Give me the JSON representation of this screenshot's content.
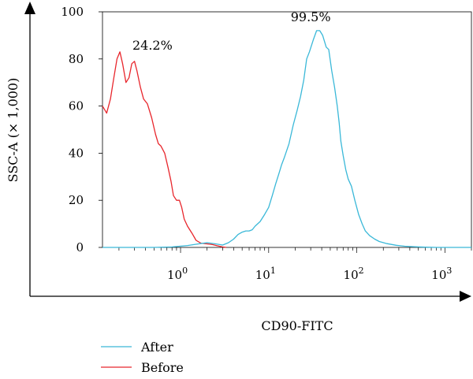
{
  "chart_data": {
    "type": "line",
    "xlabel": "CD90-FITC",
    "ylabel": "SSC-A (× 1,000)",
    "x_scale": "log",
    "xlim": [
      0.13,
      2000
    ],
    "ylim": [
      0,
      100
    ],
    "x_ticks": [
      {
        "value": 1,
        "base": "10",
        "exp": "0"
      },
      {
        "value": 10,
        "base": "10",
        "exp": "1"
      },
      {
        "value": 100,
        "base": "10",
        "exp": "2"
      },
      {
        "value": 1000,
        "base": "10",
        "exp": "3"
      }
    ],
    "y_ticks": [
      {
        "value": 0,
        "label": "0"
      },
      {
        "value": 20,
        "label": "20"
      },
      {
        "value": 40,
        "label": "40"
      },
      {
        "value": 60,
        "label": "60"
      },
      {
        "value": 80,
        "label": "80"
      },
      {
        "value": 100,
        "label": "100"
      }
    ],
    "annotations": [
      {
        "text": "24.2%",
        "x": 0.48,
        "y": 84
      },
      {
        "text": "99.5%",
        "x": 30,
        "y": 96
      }
    ],
    "legend_position": "bottom-left",
    "series": [
      {
        "name": "Before",
        "color": "#e8262c",
        "points": [
          [
            0.13,
            60
          ],
          [
            0.145,
            57
          ],
          [
            0.16,
            63
          ],
          [
            0.175,
            72
          ],
          [
            0.19,
            80
          ],
          [
            0.205,
            83
          ],
          [
            0.22,
            78
          ],
          [
            0.24,
            70
          ],
          [
            0.26,
            72
          ],
          [
            0.28,
            78
          ],
          [
            0.3,
            79
          ],
          [
            0.32,
            75
          ],
          [
            0.35,
            68
          ],
          [
            0.38,
            63
          ],
          [
            0.42,
            61
          ],
          [
            0.47,
            55
          ],
          [
            0.52,
            48
          ],
          [
            0.56,
            44
          ],
          [
            0.6,
            43
          ],
          [
            0.66,
            40
          ],
          [
            0.72,
            34
          ],
          [
            0.78,
            28
          ],
          [
            0.83,
            22
          ],
          [
            0.9,
            20
          ],
          [
            0.97,
            20
          ],
          [
            1.03,
            17
          ],
          [
            1.1,
            12
          ],
          [
            1.2,
            9
          ],
          [
            1.35,
            6
          ],
          [
            1.5,
            3
          ],
          [
            1.7,
            1.8
          ],
          [
            2.0,
            1.5
          ],
          [
            2.3,
            1.2
          ],
          [
            2.6,
            0.7
          ],
          [
            3.0,
            0.2
          ],
          [
            3.3,
            0
          ]
        ]
      },
      {
        "name": "After",
        "color": "#3ab8d8",
        "points": [
          [
            0.13,
            0
          ],
          [
            0.5,
            0
          ],
          [
            0.8,
            0.2
          ],
          [
            1.2,
            0.8
          ],
          [
            1.6,
            1.5
          ],
          [
            2.0,
            2
          ],
          [
            2.5,
            1.5
          ],
          [
            3.0,
            1
          ],
          [
            3.5,
            2
          ],
          [
            4.0,
            3.5
          ],
          [
            4.5,
            5.5
          ],
          [
            5.0,
            6.5
          ],
          [
            5.5,
            7
          ],
          [
            6.0,
            7
          ],
          [
            6.5,
            7.5
          ],
          [
            7.0,
            9
          ],
          [
            8.0,
            11
          ],
          [
            9.0,
            14
          ],
          [
            10.0,
            17
          ],
          [
            11.0,
            22
          ],
          [
            12.0,
            27
          ],
          [
            13.0,
            31
          ],
          [
            14.0,
            35
          ],
          [
            15.0,
            38
          ],
          [
            17.0,
            44
          ],
          [
            19.0,
            52
          ],
          [
            21.0,
            58
          ],
          [
            23.0,
            64
          ],
          [
            25.0,
            71
          ],
          [
            27.0,
            80
          ],
          [
            29.0,
            83
          ],
          [
            32.0,
            88
          ],
          [
            35.0,
            92
          ],
          [
            38.0,
            92
          ],
          [
            41.0,
            90
          ],
          [
            45.0,
            85
          ],
          [
            48.0,
            84
          ],
          [
            52.0,
            75
          ],
          [
            56.0,
            68
          ],
          [
            60.0,
            60
          ],
          [
            63.0,
            53
          ],
          [
            66.0,
            45
          ],
          [
            70.0,
            39
          ],
          [
            75.0,
            33
          ],
          [
            80.0,
            29
          ],
          [
            87.0,
            26
          ],
          [
            95.0,
            20
          ],
          [
            105.0,
            14
          ],
          [
            115.0,
            10
          ],
          [
            125.0,
            7
          ],
          [
            140.0,
            5
          ],
          [
            160.0,
            3.5
          ],
          [
            180.0,
            2.5
          ],
          [
            220.0,
            1.6
          ],
          [
            280.0,
            0.9
          ],
          [
            350.0,
            0.5
          ],
          [
            450.0,
            0.3
          ],
          [
            600.0,
            0.1
          ],
          [
            800.0,
            0
          ],
          [
            2000.0,
            0
          ]
        ]
      }
    ]
  }
}
